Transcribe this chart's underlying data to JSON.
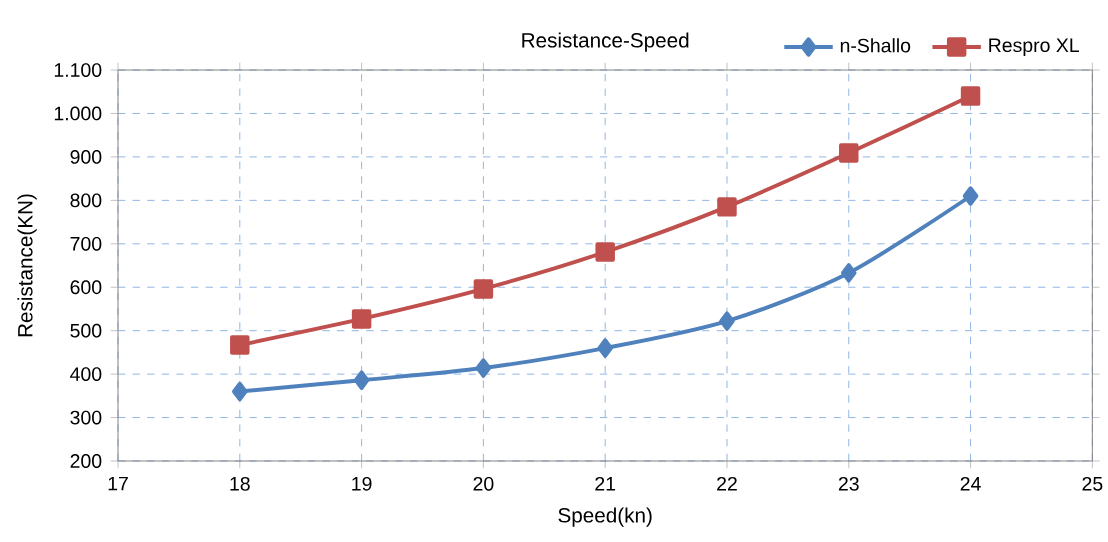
{
  "chart_data": {
    "type": "line",
    "title": "Resistance-Speed",
    "xlabel": "Speed(kn)",
    "ylabel": "Resistance(KN)",
    "x": [
      18,
      19,
      20,
      21,
      22,
      23,
      24
    ],
    "series": [
      {
        "name": "n-Shallo",
        "color": "#4f81bd",
        "marker": "diamond",
        "values": [
          360,
          386,
          414,
          460,
          522,
          633,
          810
        ]
      },
      {
        "name": "Respro XL",
        "color": "#c0504d",
        "marker": "square",
        "values": [
          467,
          527,
          596,
          681,
          785,
          909,
          1040
        ]
      }
    ],
    "xlim": [
      17,
      25
    ],
    "xticks": [
      17,
      18,
      19,
      20,
      21,
      22,
      23,
      24,
      25
    ],
    "ylim": [
      200,
      1100
    ],
    "yticks": [
      200,
      300,
      400,
      500,
      600,
      700,
      800,
      900,
      {
        "value": 1000,
        "label": "1.000"
      },
      {
        "value": 1100,
        "label": "1.100"
      }
    ],
    "grid": true,
    "legend": "top right",
    "line_style": "solid"
  }
}
